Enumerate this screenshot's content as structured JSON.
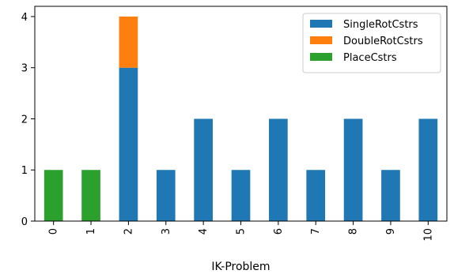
{
  "chart_data": {
    "type": "bar",
    "stacked": true,
    "categories": [
      "0",
      "1",
      "2",
      "3",
      "4",
      "5",
      "6",
      "7",
      "8",
      "9",
      "10"
    ],
    "series": [
      {
        "name": "SingleRotCstrs",
        "color": "#1f77b4",
        "values": [
          0,
          0,
          3,
          1,
          2,
          1,
          2,
          1,
          2,
          1,
          2
        ]
      },
      {
        "name": "DoubleRotCstrs",
        "color": "#ff7f0e",
        "values": [
          0,
          0,
          1,
          0,
          0,
          0,
          0,
          0,
          0,
          0,
          0
        ]
      },
      {
        "name": "PlaceCstrs",
        "color": "#2ca02c",
        "values": [
          1,
          1,
          0,
          0,
          0,
          0,
          0,
          0,
          0,
          0,
          0
        ]
      }
    ],
    "xlabel": "IK-Problem",
    "ylabel": "",
    "ylim": [
      0,
      4.2
    ],
    "yticks": [
      0,
      1,
      2,
      3,
      4
    ],
    "x_tick_rotation": "vertical",
    "grid": false,
    "legend_position": "top-right"
  }
}
